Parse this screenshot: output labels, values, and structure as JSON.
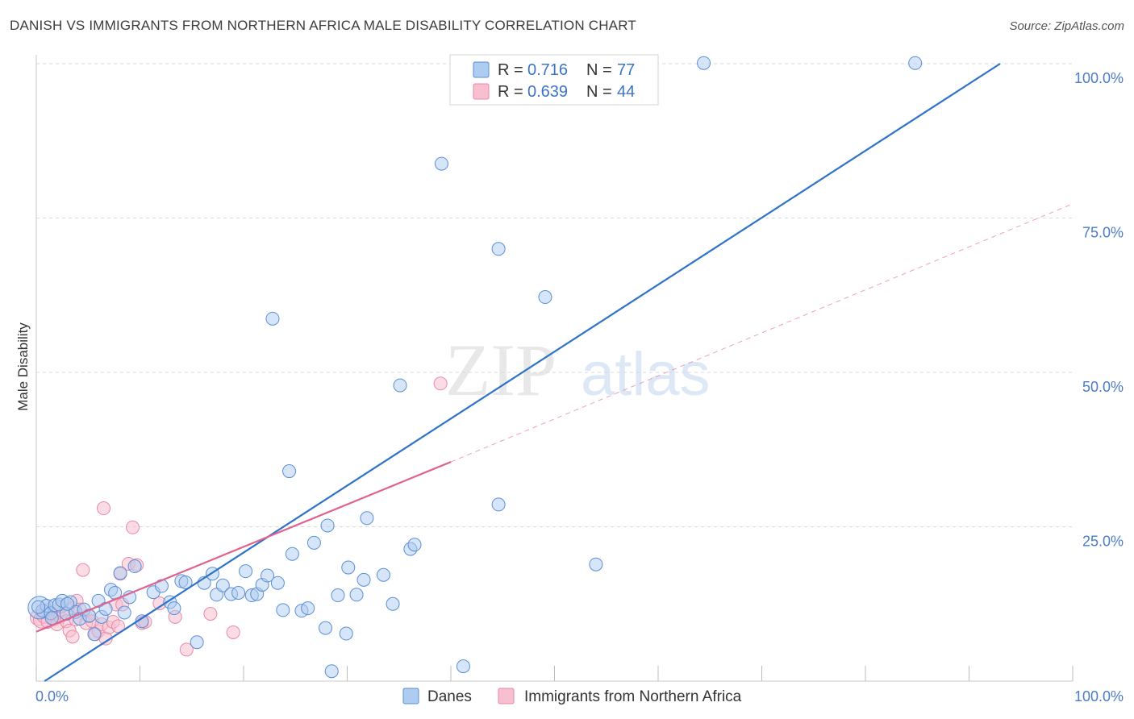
{
  "title": "DANISH VS IMMIGRANTS FROM NORTHERN AFRICA MALE DISABILITY CORRELATION CHART",
  "source": "Source: ZipAtlas.com",
  "watermark": {
    "zip": "ZIP",
    "atlas": "atlas"
  },
  "colors": {
    "danes_fill": "#aecbf0",
    "danes_stroke": "#5b8fd6",
    "danes_line": "#2f72c9",
    "immigrants_fill": "#f7bfd0",
    "immigrants_stroke": "#e98aa8",
    "immigrants_line": "#e0638f",
    "grid": "#d9d9d9",
    "tick_text": "#4a7cc7"
  },
  "legend": {
    "r_label": "R =",
    "n_label": "N =",
    "rows": [
      {
        "r": "0.716",
        "n": "77"
      },
      {
        "r": "0.639",
        "n": "44"
      }
    ]
  },
  "chart_data": {
    "type": "scatter",
    "title": "DANISH VS IMMIGRANTS FROM NORTHERN AFRICA MALE DISABILITY CORRELATION CHART",
    "xlabel": "",
    "ylabel": "Male Disability",
    "xlim": [
      0,
      100
    ],
    "ylim": [
      0,
      100
    ],
    "x_tick_labels": [
      "0.0%",
      "100.0%"
    ],
    "y_ticks": [
      25,
      50,
      75,
      100
    ],
    "y_tick_labels": [
      "25.0%",
      "50.0%",
      "75.0%",
      "100.0%"
    ],
    "grid": true,
    "legend_position": "top-center",
    "series": [
      {
        "name": "Danes",
        "R": 0.716,
        "N": 77,
        "trend": {
          "x": [
            0.8,
            93
          ],
          "y": [
            0,
            100
          ],
          "style": "solid"
        },
        "points": [
          [
            0.3,
            11.9
          ],
          [
            0.6,
            11.4
          ],
          [
            1.0,
            12.2
          ],
          [
            1.4,
            11.0
          ],
          [
            1.8,
            12.3
          ],
          [
            2.2,
            12.4
          ],
          [
            2.5,
            13.0
          ],
          [
            2.9,
            10.9
          ],
          [
            3.3,
            12.8
          ],
          [
            3.8,
            11.2
          ],
          [
            4.2,
            10.1
          ],
          [
            4.6,
            11.6
          ],
          [
            5.1,
            10.6
          ],
          [
            5.6,
            7.6
          ],
          [
            6.0,
            13.0
          ],
          [
            6.3,
            10.4
          ],
          [
            6.7,
            11.7
          ],
          [
            7.2,
            14.8
          ],
          [
            7.6,
            14.3
          ],
          [
            8.1,
            17.5
          ],
          [
            8.5,
            11.1
          ],
          [
            9.0,
            13.6
          ],
          [
            9.5,
            18.6
          ],
          [
            10.2,
            9.7
          ],
          [
            11.3,
            14.4
          ],
          [
            12.1,
            15.4
          ],
          [
            12.9,
            12.8
          ],
          [
            13.3,
            11.8
          ],
          [
            14.0,
            16.2
          ],
          [
            14.4,
            16.0
          ],
          [
            15.5,
            6.3
          ],
          [
            16.2,
            15.9
          ],
          [
            17.0,
            17.4
          ],
          [
            17.4,
            14.0
          ],
          [
            18.0,
            15.5
          ],
          [
            18.8,
            14.1
          ],
          [
            19.5,
            14.3
          ],
          [
            20.2,
            17.8
          ],
          [
            20.8,
            13.9
          ],
          [
            21.3,
            14.1
          ],
          [
            21.8,
            15.6
          ],
          [
            22.3,
            17.1
          ],
          [
            22.8,
            58.7
          ],
          [
            23.3,
            15.9
          ],
          [
            23.8,
            11.5
          ],
          [
            24.4,
            34.0
          ],
          [
            24.7,
            20.6
          ],
          [
            25.6,
            11.4
          ],
          [
            26.2,
            11.8
          ],
          [
            26.8,
            22.4
          ],
          [
            27.9,
            8.6
          ],
          [
            28.1,
            25.2
          ],
          [
            28.5,
            1.6
          ],
          [
            29.1,
            13.9
          ],
          [
            29.9,
            7.7
          ],
          [
            30.1,
            18.4
          ],
          [
            30.9,
            14.0
          ],
          [
            31.6,
            16.4
          ],
          [
            31.9,
            26.4
          ],
          [
            33.5,
            17.2
          ],
          [
            34.4,
            12.5
          ],
          [
            35.1,
            47.9
          ],
          [
            36.1,
            21.4
          ],
          [
            36.5,
            22.1
          ],
          [
            39.1,
            83.8
          ],
          [
            41.2,
            2.4
          ],
          [
            44.6,
            28.6
          ],
          [
            44.6,
            70.0
          ],
          [
            47.5,
            100.2
          ],
          [
            49.1,
            62.2
          ],
          [
            50.2,
            100.3
          ],
          [
            54.0,
            18.9
          ],
          [
            64.4,
            100.1
          ],
          [
            84.8,
            100.1
          ],
          [
            0.2,
            12.0
          ],
          [
            1.5,
            10.2
          ],
          [
            3.0,
            12.5
          ]
        ]
      },
      {
        "name": "Immigrants from Northern Africa",
        "R": 0.639,
        "N": 44,
        "trend": {
          "x": [
            0,
            40
          ],
          "y": [
            8.0,
            35.5
          ],
          "style": "solid",
          "extended_to": [
            100,
            77.3
          ],
          "extension_style": "dashed"
        },
        "points": [
          [
            0.2,
            10.3
          ],
          [
            0.5,
            9.9
          ],
          [
            0.8,
            10.7
          ],
          [
            1.1,
            9.6
          ],
          [
            1.4,
            10.9
          ],
          [
            1.7,
            10.0
          ],
          [
            2.0,
            9.2
          ],
          [
            2.3,
            10.4
          ],
          [
            2.6,
            11.3
          ],
          [
            2.9,
            9.7
          ],
          [
            3.2,
            8.2
          ],
          [
            3.5,
            7.2
          ],
          [
            3.8,
            10.0
          ],
          [
            3.6,
            11.8
          ],
          [
            3.9,
            13.0
          ],
          [
            4.2,
            11.6
          ],
          [
            4.5,
            18.0
          ],
          [
            4.8,
            9.4
          ],
          [
            5.1,
            10.5
          ],
          [
            5.4,
            9.7
          ],
          [
            5.7,
            7.6
          ],
          [
            6.0,
            8.1
          ],
          [
            6.3,
            9.2
          ],
          [
            6.7,
            6.9
          ],
          [
            6.5,
            28.0
          ],
          [
            7.0,
            8.7
          ],
          [
            7.4,
            9.6
          ],
          [
            7.7,
            12.4
          ],
          [
            7.9,
            8.9
          ],
          [
            8.1,
            17.4
          ],
          [
            8.3,
            12.4
          ],
          [
            8.9,
            19.0
          ],
          [
            9.3,
            24.9
          ],
          [
            9.7,
            18.8
          ],
          [
            10.2,
            9.4
          ],
          [
            10.5,
            9.6
          ],
          [
            11.9,
            12.6
          ],
          [
            13.4,
            10.4
          ],
          [
            14.5,
            5.1
          ],
          [
            16.8,
            10.9
          ],
          [
            19.0,
            7.9
          ],
          [
            39.0,
            48.2
          ],
          [
            1.0,
            11.5
          ],
          [
            2.4,
            12.1
          ]
        ]
      }
    ]
  }
}
